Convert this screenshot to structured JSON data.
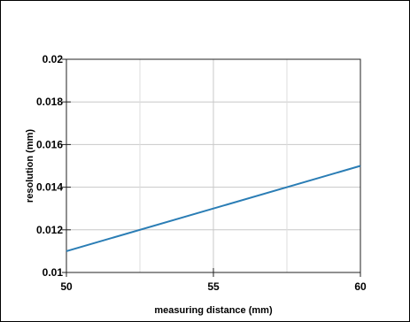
{
  "chart_data": {
    "type": "line",
    "title": "",
    "xlabel": "measuring distance (mm)",
    "ylabel": "resolution (mm)",
    "xlim": [
      50,
      60
    ],
    "ylim": [
      0.01,
      0.02
    ],
    "x_ticks": [
      "50",
      "55",
      "60"
    ],
    "y_ticks": [
      "0.01",
      "0.012",
      "0.014",
      "0.016",
      "0.018",
      "0.02"
    ],
    "x_minor_grid": [
      52.5,
      57.5
    ],
    "y_grid": [
      0.012,
      0.014,
      0.016,
      0.018
    ],
    "grid": true,
    "legend": "none",
    "line_color": "#2a7db5",
    "series": [
      {
        "x": [
          50,
          60
        ],
        "y": [
          0.011,
          0.015
        ]
      }
    ]
  }
}
